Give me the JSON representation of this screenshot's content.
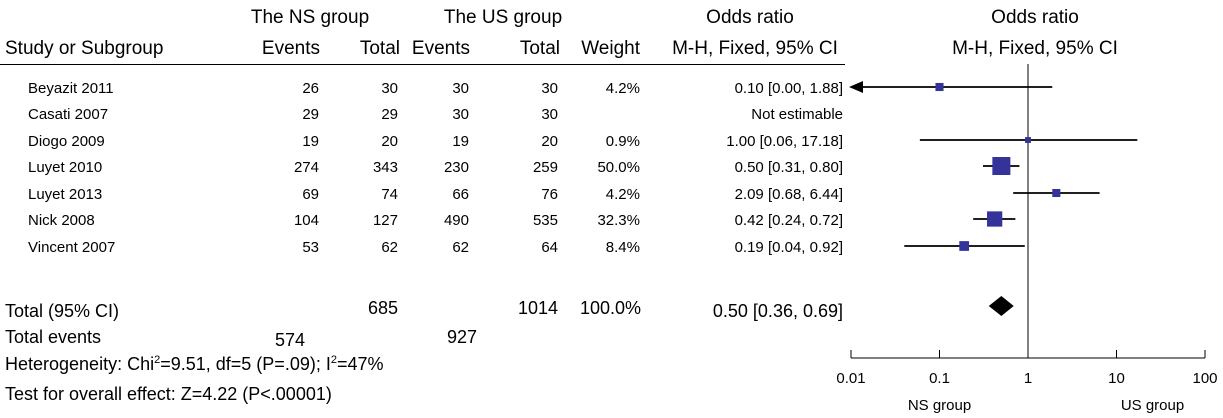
{
  "headers": {
    "ns_group": "The NS group",
    "us_group": "The US group",
    "or_title": "Odds ratio",
    "or_plot_title": "Odds ratio",
    "study": "Study or Subgroup",
    "events_ns": "Events",
    "total_ns": "Total",
    "events_us": "Events",
    "total_us": "Total",
    "weight": "Weight",
    "or_method": "M-H, Fixed, 95% CI",
    "or_plot_method": "M-H, Fixed, 95% CI"
  },
  "rows": [
    {
      "study": "Beyazit 2011",
      "ns_events": "26",
      "ns_total": "30",
      "us_events": "30",
      "us_total": "30",
      "weight": "4.2%",
      "or_ci": "0.10 [0.00, 1.88]"
    },
    {
      "study": "Casati 2007",
      "ns_events": "29",
      "ns_total": "29",
      "us_events": "30",
      "us_total": "30",
      "weight": "",
      "or_ci": "Not estimable"
    },
    {
      "study": "Diogo 2009",
      "ns_events": "19",
      "ns_total": "20",
      "us_events": "19",
      "us_total": "20",
      "weight": "0.9%",
      "or_ci": "1.00 [0.06, 17.18]"
    },
    {
      "study": "Luyet 2010",
      "ns_events": "274",
      "ns_total": "343",
      "us_events": "230",
      "us_total": "259",
      "weight": "50.0%",
      "or_ci": "0.50 [0.31, 0.80]"
    },
    {
      "study": "Luyet 2013",
      "ns_events": "69",
      "ns_total": "74",
      "us_events": "66",
      "us_total": "76",
      "weight": "4.2%",
      "or_ci": "2.09 [0.68, 6.44]"
    },
    {
      "study": "Nick 2008",
      "ns_events": "104",
      "ns_total": "127",
      "us_events": "490",
      "us_total": "535",
      "weight": "32.3%",
      "or_ci": "0.42 [0.24, 0.72]"
    },
    {
      "study": "Vincent 2007",
      "ns_events": "53",
      "ns_total": "62",
      "us_events": "62",
      "us_total": "64",
      "weight": "8.4%",
      "or_ci": "0.19 [0.04, 0.92]"
    }
  ],
  "total": {
    "label": "Total (95% CI)",
    "ns_total": "685",
    "us_total": "1014",
    "weight": "100.0%",
    "or_ci": "0.50 [0.36, 0.69]"
  },
  "total_events": {
    "label": "Total events",
    "ns": "574",
    "us": "927"
  },
  "heterogeneity": {
    "prefix": "Heterogeneity: Chi",
    "chi_sup": "2",
    "mid": "=9.51, df=5 (P=.09); I",
    "i_sup": "2",
    "suffix": "=47%"
  },
  "overall_effect": "Test for overall effect: Z=4.22 (P<.00001)",
  "chart_data": {
    "type": "forest",
    "title": "Odds ratio",
    "subtitle": "M-H, Fixed, 95% CI",
    "x_scale": "log",
    "xlim": [
      0.01,
      100
    ],
    "x_ticks": [
      0.01,
      0.1,
      1,
      10,
      100
    ],
    "x_tick_labels": [
      "0.01",
      "0.1",
      "1",
      "10",
      "100"
    ],
    "reference_line": 1,
    "left_label": "NS group",
    "right_label": "US group",
    "studies": [
      {
        "name": "Beyazit 2011",
        "or": 0.1,
        "lo": 0.0,
        "hi": 1.88,
        "weight": 4.2
      },
      {
        "name": "Casati 2007",
        "or": null,
        "lo": null,
        "hi": null,
        "weight": null
      },
      {
        "name": "Diogo 2009",
        "or": 1.0,
        "lo": 0.06,
        "hi": 17.18,
        "weight": 0.9
      },
      {
        "name": "Luyet 2010",
        "or": 0.5,
        "lo": 0.31,
        "hi": 0.8,
        "weight": 50.0
      },
      {
        "name": "Luyet 2013",
        "or": 2.09,
        "lo": 0.68,
        "hi": 6.44,
        "weight": 4.2
      },
      {
        "name": "Nick 2008",
        "or": 0.42,
        "lo": 0.24,
        "hi": 0.72,
        "weight": 32.3
      },
      {
        "name": "Vincent 2007",
        "or": 0.19,
        "lo": 0.04,
        "hi": 0.92,
        "weight": 8.4
      }
    ],
    "pooled": {
      "or": 0.5,
      "lo": 0.36,
      "hi": 0.69
    },
    "colors": {
      "study_marker": "#33339a",
      "pooled_marker": "#000000",
      "lines": "#000000"
    }
  }
}
